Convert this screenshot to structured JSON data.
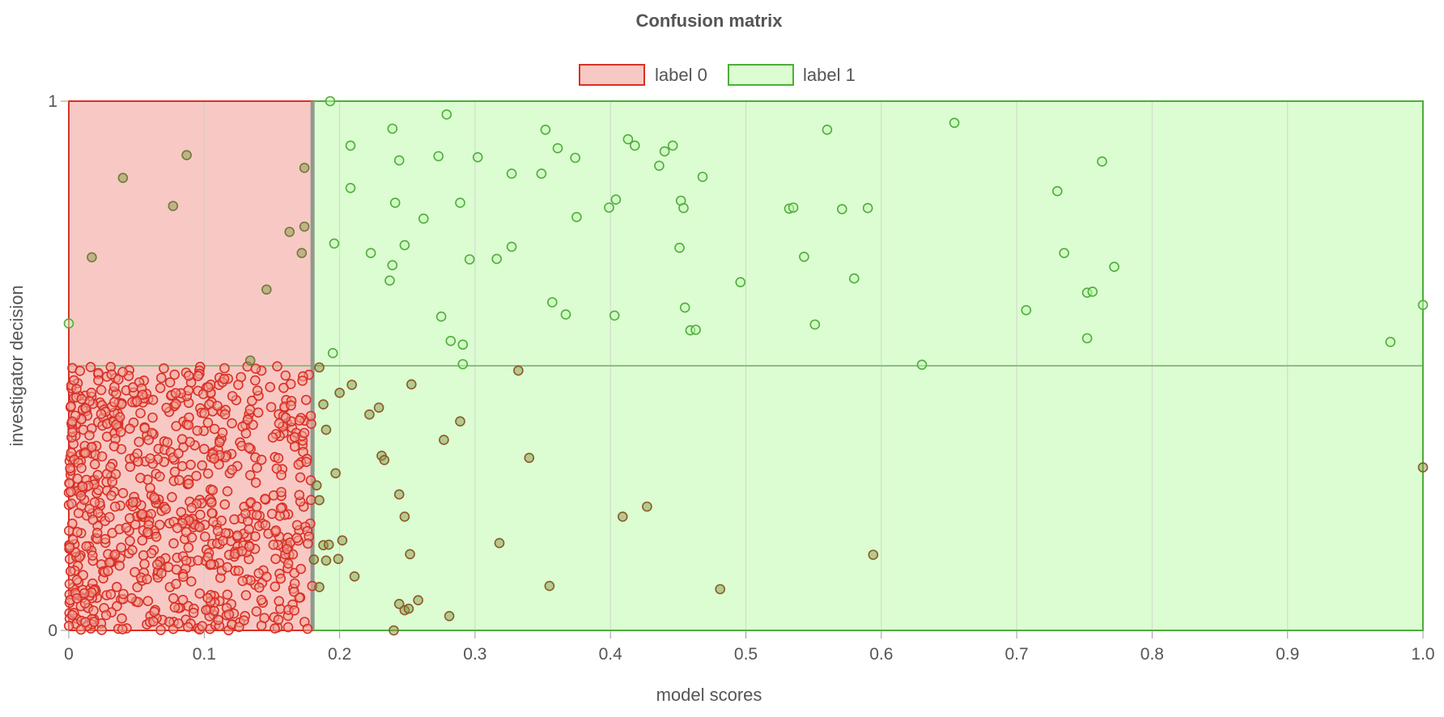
{
  "colors": {
    "label0_fill": "#f8c9c4",
    "label0_stroke": "#d93025",
    "label1_fill": "#dcfcd2",
    "label1_stroke": "#4caf38",
    "threshold": "#8e9a8c",
    "grid": "#c9c9c9",
    "text": "#555555"
  },
  "chart_data": {
    "type": "scatter",
    "title": "Confusion matrix",
    "xlabel": "model scores",
    "ylabel": "investigator decision",
    "xlim": [
      0,
      1
    ],
    "ylim": [
      0,
      1
    ],
    "grid": "vertical",
    "legend_position": "top-center",
    "legend": [
      {
        "name": "label 0",
        "color": "#d93025"
      },
      {
        "name": "label 1",
        "color": "#4caf38"
      }
    ],
    "x_ticks": [
      "0",
      "0.1",
      "0.2",
      "0.3",
      "0.4",
      "0.5",
      "0.6",
      "0.7",
      "0.8",
      "0.9",
      "1.0"
    ],
    "x_tick_values": [
      0,
      0.1,
      0.2,
      0.3,
      0.4,
      0.5,
      0.6,
      0.7,
      0.8,
      0.9,
      1.0
    ],
    "y_ticks": [
      "0",
      "1"
    ],
    "y_tick_values": [
      0,
      1
    ],
    "threshold": 0.18,
    "decision_split": 0.5,
    "regions": [
      {
        "name": "label 0",
        "x": [
          0,
          0.18
        ],
        "y": [
          0,
          1
        ]
      },
      {
        "name": "label 1",
        "x": [
          0.18,
          1.0
        ],
        "y": [
          0,
          1
        ]
      }
    ],
    "series": [
      {
        "name": "label 1",
        "points": [
          [
            0.193,
            1.0
          ],
          [
            0.279,
            0.975
          ],
          [
            0.654,
            0.959
          ],
          [
            0.239,
            0.948
          ],
          [
            0.352,
            0.946
          ],
          [
            0.56,
            0.946
          ],
          [
            0.413,
            0.928
          ],
          [
            0.208,
            0.916
          ],
          [
            0.418,
            0.916
          ],
          [
            0.446,
            0.916
          ],
          [
            0.361,
            0.911
          ],
          [
            0.44,
            0.905
          ],
          [
            0.302,
            0.894
          ],
          [
            0.273,
            0.896
          ],
          [
            0.374,
            0.893
          ],
          [
            0.244,
            0.888
          ],
          [
            0.763,
            0.886
          ],
          [
            0.436,
            0.878
          ],
          [
            0.327,
            0.863
          ],
          [
            0.349,
            0.863
          ],
          [
            0.468,
            0.857
          ],
          [
            0.208,
            0.836
          ],
          [
            0.73,
            0.83
          ],
          [
            0.241,
            0.808
          ],
          [
            0.289,
            0.808
          ],
          [
            0.404,
            0.814
          ],
          [
            0.452,
            0.812
          ],
          [
            0.399,
            0.799
          ],
          [
            0.454,
            0.798
          ],
          [
            0.532,
            0.797
          ],
          [
            0.535,
            0.799
          ],
          [
            0.571,
            0.796
          ],
          [
            0.59,
            0.798
          ],
          [
            0.262,
            0.778
          ],
          [
            0.375,
            0.781
          ],
          [
            0.196,
            0.731
          ],
          [
            0.248,
            0.728
          ],
          [
            0.327,
            0.725
          ],
          [
            0.451,
            0.723
          ],
          [
            0.223,
            0.713
          ],
          [
            0.735,
            0.713
          ],
          [
            0.316,
            0.702
          ],
          [
            0.296,
            0.701
          ],
          [
            0.543,
            0.706
          ],
          [
            0.239,
            0.69
          ],
          [
            0.772,
            0.687
          ],
          [
            0.237,
            0.661
          ],
          [
            0.58,
            0.665
          ],
          [
            0.496,
            0.658
          ],
          [
            0.752,
            0.638
          ],
          [
            0.756,
            0.64
          ],
          [
            0.357,
            0.62
          ],
          [
            0.455,
            0.61
          ],
          [
            0.707,
            0.605
          ],
          [
            0.367,
            0.597
          ],
          [
            0.275,
            0.593
          ],
          [
            0.403,
            0.595
          ],
          [
            0.0,
            0.58
          ],
          [
            0.551,
            0.578
          ],
          [
            0.459,
            0.567
          ],
          [
            0.463,
            0.568
          ],
          [
            1.0,
            0.615
          ],
          [
            0.752,
            0.552
          ],
          [
            0.976,
            0.545
          ],
          [
            0.282,
            0.547
          ],
          [
            0.291,
            0.54
          ],
          [
            0.195,
            0.524
          ],
          [
            0.63,
            0.502
          ],
          [
            0.291,
            0.503
          ]
        ]
      },
      {
        "name": "label 0",
        "points": [
          [
            0.087,
            0.898
          ],
          [
            0.04,
            0.855
          ],
          [
            0.174,
            0.874
          ],
          [
            0.077,
            0.802
          ],
          [
            0.163,
            0.753
          ],
          [
            0.174,
            0.763
          ],
          [
            0.017,
            0.705
          ],
          [
            0.172,
            0.713
          ],
          [
            0.146,
            0.644
          ],
          [
            0.134,
            0.51
          ],
          [
            0.185,
            0.497
          ],
          [
            0.253,
            0.465
          ],
          [
            0.332,
            0.491
          ],
          [
            0.209,
            0.464
          ],
          [
            0.2,
            0.449
          ],
          [
            0.188,
            0.427
          ],
          [
            0.229,
            0.421
          ],
          [
            0.222,
            0.408
          ],
          [
            0.289,
            0.395
          ],
          [
            0.19,
            0.379
          ],
          [
            0.277,
            0.36
          ],
          [
            0.231,
            0.33
          ],
          [
            0.233,
            0.322
          ],
          [
            0.34,
            0.326
          ],
          [
            0.197,
            0.297
          ],
          [
            1.0,
            0.308
          ],
          [
            0.183,
            0.274
          ],
          [
            0.244,
            0.257
          ],
          [
            0.185,
            0.246
          ],
          [
            0.427,
            0.234
          ],
          [
            0.248,
            0.215
          ],
          [
            0.409,
            0.215
          ],
          [
            0.202,
            0.17
          ],
          [
            0.318,
            0.165
          ],
          [
            0.594,
            0.143
          ],
          [
            0.188,
            0.161
          ],
          [
            0.192,
            0.162
          ],
          [
            0.252,
            0.144
          ],
          [
            0.199,
            0.135
          ],
          [
            0.181,
            0.134
          ],
          [
            0.19,
            0.132
          ],
          [
            0.211,
            0.102
          ],
          [
            0.355,
            0.084
          ],
          [
            0.185,
            0.082
          ],
          [
            0.481,
            0.078
          ],
          [
            0.258,
            0.057
          ],
          [
            0.244,
            0.05
          ],
          [
            0.248,
            0.038
          ],
          [
            0.251,
            0.041
          ],
          [
            0.281,
            0.027
          ],
          [
            0.24,
            0.0
          ]
        ]
      }
    ],
    "dense_cluster": {
      "series": "label 0",
      "x_range": [
        0.0,
        0.18
      ],
      "y_range": [
        0.0,
        0.5
      ],
      "approx_count": 800
    }
  }
}
